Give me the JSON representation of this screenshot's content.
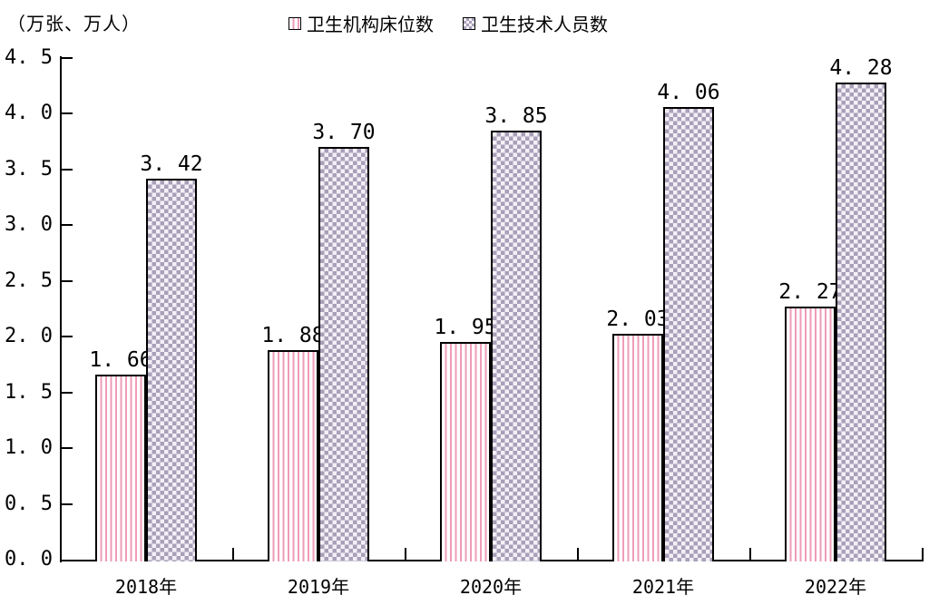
{
  "header": {
    "unit_label": "（万张、万人）"
  },
  "legend": {
    "items": [
      {
        "label": "卫生机构床位数",
        "pattern": "striped-pink"
      },
      {
        "label": "卫生技术人员数",
        "pattern": "checker-purple"
      }
    ]
  },
  "chart_data": {
    "type": "bar",
    "categories": [
      "2018年",
      "2019年",
      "2020年",
      "2021年",
      "2022年"
    ],
    "series": [
      {
        "name": "卫生机构床位数",
        "pattern": "striped-pink",
        "values": [
          1.66,
          1.88,
          1.95,
          2.03,
          2.27
        ]
      },
      {
        "name": "卫生技术人员数",
        "pattern": "checker-purple",
        "values": [
          3.42,
          3.7,
          3.85,
          4.06,
          4.28
        ]
      }
    ],
    "title": "",
    "xlabel": "",
    "ylabel": "（万张、万人）",
    "ylim": [
      0,
      4.5
    ],
    "ytick_step": 0.5,
    "bar_value_labels": true,
    "grid": false,
    "legend_position": "top-center",
    "colors": {
      "stripe": "#ee9cb9",
      "checker_dark": "#a8a0b8",
      "checker_light": "#f3eff6",
      "axis": "#000000",
      "text": "#000000",
      "background": "#ffffff"
    }
  }
}
